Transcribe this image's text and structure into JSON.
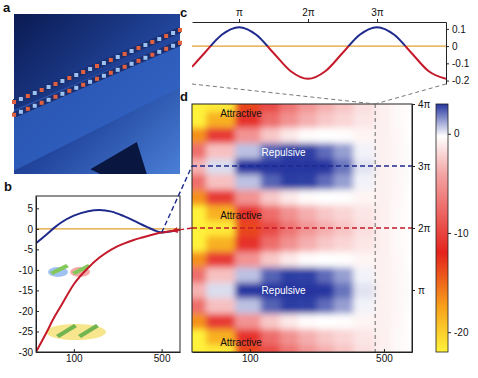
{
  "chart_data": [
    {
      "type": "illustration",
      "panel": "a"
    },
    {
      "type": "line",
      "panel": "b",
      "x": [
        50,
        60,
        70,
        80,
        100,
        130,
        160,
        200,
        250,
        300,
        350,
        400,
        450,
        500,
        600,
        700
      ],
      "series": [
        {
          "color": "#1e2a8c",
          "values": [
            -3.5,
            -1.5,
            0.3,
            1.6,
            3.2,
            4.3,
            4.6,
            4.2,
            3.1,
            2.0,
            1.0,
            0.2,
            -0.5,
            -0.9,
            -0.6,
            -0.2
          ]
        },
        {
          "color": "#c41a2a",
          "values": [
            -30,
            -25.5,
            -21.5,
            -18.5,
            -13.5,
            -9.5,
            -7,
            -5,
            -3.6,
            -2.7,
            -2.1,
            -1.6,
            -1.2,
            -0.9,
            -0.5,
            -0.3
          ]
        }
      ],
      "xlim": [
        50,
        700
      ],
      "xticks": [
        100,
        500
      ],
      "log": "x",
      "ylim": [
        -30,
        8
      ],
      "yticks": [
        5,
        0,
        -5,
        -10,
        -15,
        -20,
        -25,
        -30
      ],
      "hline": 0
    },
    {
      "type": "line",
      "panel": "c",
      "x": [
        1.0,
        1.571,
        2.356,
        3.142,
        3.927,
        4.712,
        5.498,
        6.283,
        7.069,
        7.854,
        8.639,
        9.425,
        10.21,
        10.996,
        11.781,
        12.566
      ],
      "series": [
        {
          "values": [
            -0.121,
            -0.04,
            0.066,
            0.11,
            0.066,
            -0.04,
            -0.146,
            -0.19,
            -0.146,
            -0.04,
            0.066,
            0.11,
            0.066,
            -0.04,
            -0.146,
            -0.19
          ]
        }
      ],
      "xlim": [
        1.0,
        12.566
      ],
      "xticks": [
        {
          "value": 3.1416,
          "label": "π"
        },
        {
          "value": 6.2832,
          "label": "2π"
        },
        {
          "value": 9.4248,
          "label": "3π"
        }
      ],
      "ylim": [
        -0.22,
        0.14
      ],
      "yticks": [
        0.1,
        0,
        -0.1,
        -0.2
      ],
      "hline": 0
    },
    {
      "type": "heatmap",
      "panel": "d",
      "x": [
        50,
        70,
        100,
        130,
        160,
        200,
        250,
        300,
        400,
        500,
        600,
        700
      ],
      "y": [
        0,
        0.785,
        1.571,
        2.356,
        3.142,
        3.927,
        4.712,
        5.498,
        6.283,
        7.069,
        7.854,
        8.639,
        9.425,
        10.21,
        10.996,
        11.781,
        12.566
      ],
      "cells": [
        [
          -30,
          -21.5,
          -13.5,
          -9.5,
          -7,
          -5,
          -3.6,
          -2.7,
          -1.6,
          -0.9,
          -0.5,
          -0.3
        ],
        [
          -26.12,
          -18.31,
          -11.05,
          -7.48,
          -5.3,
          -3.65,
          -2.62,
          -2.01,
          -1.34,
          -0.9,
          -0.51,
          -0.29
        ],
        [
          -16.75,
          -10.6,
          -5.15,
          -2.6,
          -1.2,
          -0.4,
          -0.25,
          -0.35,
          -0.7,
          -0.9,
          -0.55,
          -0.25
        ],
        [
          -7.38,
          -2.89,
          0.75,
          2.28,
          2.9,
          2.85,
          2.12,
          1.31,
          -0.06,
          -0.9,
          -0.59,
          -0.21
        ],
        [
          -3.5,
          0.3,
          3.2,
          4.3,
          4.6,
          4.2,
          3.1,
          2.0,
          0.2,
          -0.9,
          -0.6,
          -0.2
        ],
        [
          -7.38,
          -2.89,
          0.75,
          2.28,
          2.9,
          2.85,
          2.12,
          1.31,
          -0.06,
          -0.9,
          -0.59,
          -0.21
        ],
        [
          -16.75,
          -10.6,
          -5.15,
          -2.6,
          -1.2,
          -0.4,
          -0.25,
          -0.35,
          -0.7,
          -0.9,
          -0.55,
          -0.25
        ],
        [
          -26.12,
          -18.31,
          -11.05,
          -7.48,
          -5.3,
          -3.65,
          -2.62,
          -2.01,
          -1.34,
          -0.9,
          -0.51,
          -0.29
        ],
        [
          -30,
          -21.5,
          -13.5,
          -9.5,
          -7,
          -5,
          -3.6,
          -2.7,
          -1.6,
          -0.9,
          -0.5,
          -0.3
        ],
        [
          -26.12,
          -18.31,
          -11.05,
          -7.48,
          -5.3,
          -3.65,
          -2.62,
          -2.01,
          -1.34,
          -0.9,
          -0.51,
          -0.29
        ],
        [
          -16.75,
          -10.6,
          -5.15,
          -2.6,
          -1.2,
          -0.4,
          -0.25,
          -0.35,
          -0.7,
          -0.9,
          -0.55,
          -0.25
        ],
        [
          -7.38,
          -2.89,
          0.75,
          2.28,
          2.9,
          2.85,
          2.12,
          1.31,
          -0.06,
          -0.9,
          -0.59,
          -0.21
        ],
        [
          -3.5,
          0.3,
          3.2,
          4.3,
          4.6,
          4.2,
          3.1,
          2.0,
          0.2,
          -0.9,
          -0.6,
          -0.2
        ],
        [
          -7.38,
          -2.89,
          0.75,
          2.28,
          2.9,
          2.85,
          2.12,
          1.31,
          -0.06,
          -0.9,
          -0.59,
          -0.21
        ],
        [
          -16.75,
          -10.6,
          -5.15,
          -2.6,
          -1.2,
          -0.4,
          -0.25,
          -0.35,
          -0.7,
          -0.9,
          -0.55,
          -0.25
        ],
        [
          -26.12,
          -18.31,
          -11.05,
          -7.48,
          -5.3,
          -3.65,
          -2.62,
          -2.01,
          -1.34,
          -0.9,
          -0.51,
          -0.29
        ],
        [
          -30,
          -21.5,
          -13.5,
          -9.5,
          -7,
          -5,
          -3.6,
          -2.7,
          -1.6,
          -0.9,
          -0.5,
          -0.3
        ]
      ],
      "xlim": [
        50,
        700
      ],
      "xticks": [
        100,
        500
      ],
      "log": "x",
      "ylim": [
        0,
        12.566
      ],
      "yticks": [
        {
          "value": 3.1416,
          "label": "π"
        },
        {
          "value": 6.2832,
          "label": "2π"
        },
        {
          "value": 9.4248,
          "label": "3π"
        },
        {
          "value": 12.566,
          "label": "4π"
        }
      ],
      "colorbar": {
        "range": [
          -22,
          3
        ],
        "ticks": [
          0,
          -10,
          -20
        ]
      },
      "hlines": [
        9.4248,
        6.2832
      ],
      "cross_section_x": 450,
      "annotations": [
        {
          "text": "Attractive",
          "x": 90,
          "y": 12.1
        },
        {
          "text": "Repulsive",
          "x": 150,
          "y": 10.1
        },
        {
          "text": "Attractive",
          "x": 90,
          "y": 6.9
        },
        {
          "text": "Repulsive",
          "x": 150,
          "y": 3.14
        },
        {
          "text": "Attractive",
          "x": 90,
          "y": 0.5
        }
      ]
    }
  ]
}
